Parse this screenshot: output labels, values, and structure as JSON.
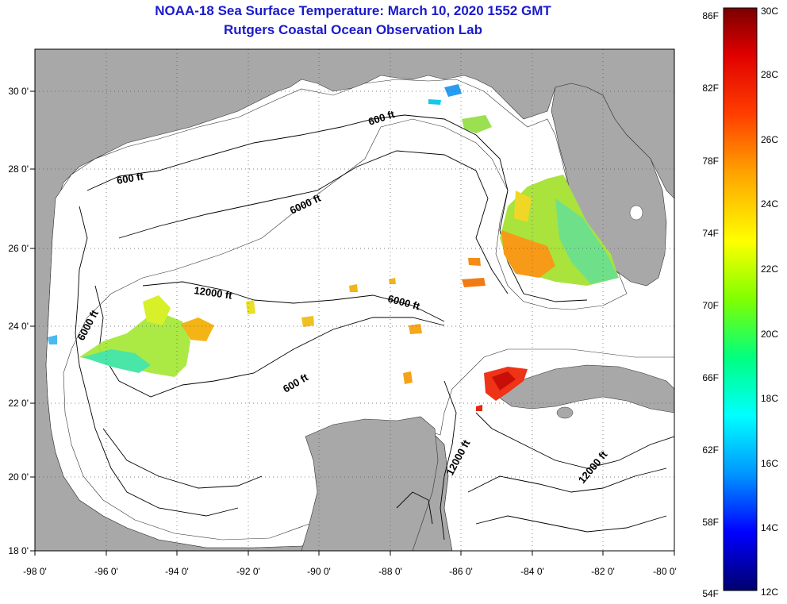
{
  "title": {
    "line1": "NOAA-18 Sea Surface Temperature:  March 10, 2020 1552 GMT",
    "line2": "Rutgers Coastal Ocean Observation Lab"
  },
  "map": {
    "x_ticks": [
      "-98 0'",
      "-96 0'",
      "-94 0'",
      "-92 0'",
      "-90 0'",
      "-88 0'",
      "-86 0'",
      "-84 0'",
      "-82 0'",
      "-80 0'"
    ],
    "y_ticks": [
      "30 0'",
      "28 0'",
      "26 0'",
      "24 0'",
      "22 0'",
      "20 0'",
      "18 0'"
    ],
    "contour_labels": [
      "600 ft",
      "600 ft",
      "6000 ft",
      "12000 ft",
      "6000 ft",
      "6000 ft",
      "600 ft",
      "12000 ft",
      "12000 ft"
    ],
    "colors": {
      "land": "#a8a8a8",
      "ocean": "#ffffff",
      "grid": "#555555"
    }
  },
  "colorbar": {
    "fahrenheit": [
      "86F",
      "82F",
      "78F",
      "74F",
      "70F",
      "66F",
      "62F",
      "58F",
      "54F"
    ],
    "celsius": [
      "30C",
      "28C",
      "26C",
      "24C",
      "22C",
      "20C",
      "18C",
      "16C",
      "14C",
      "12C"
    ],
    "gradient": [
      "#00006e",
      "#0000ff",
      "#0096ff",
      "#00ffff",
      "#00ff80",
      "#80ff00",
      "#ffff00",
      "#ffa000",
      "#ff3c00",
      "#e00000",
      "#7a0000"
    ]
  }
}
